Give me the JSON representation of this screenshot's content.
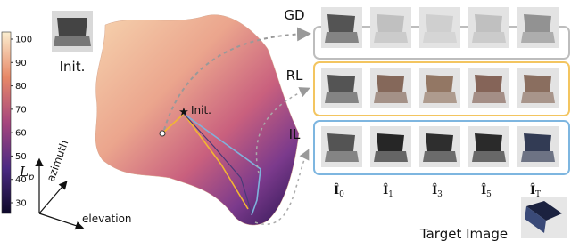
{
  "init_thumbnail_label": "Init.",
  "colorbar": {
    "ticks": [
      30,
      40,
      50,
      60,
      70,
      80,
      90,
      100
    ]
  },
  "axes": {
    "vertical": {
      "symbol": "L",
      "subscript": "p"
    },
    "azimuth": "azimuth",
    "elevation": "elevation"
  },
  "surface": {
    "start_label": "Init."
  },
  "rows": [
    {
      "label": "GD"
    },
    {
      "label": "RL"
    },
    {
      "label": "IL"
    }
  ],
  "columns": [
    {
      "symbol": "Î",
      "subscript": "0"
    },
    {
      "symbol": "Î",
      "subscript": "1"
    },
    {
      "symbol": "Î",
      "subscript": "3"
    },
    {
      "symbol": "Î",
      "subscript": "5"
    },
    {
      "symbol": "Î",
      "subscript": "T"
    }
  ],
  "target_label": "Target Image"
}
